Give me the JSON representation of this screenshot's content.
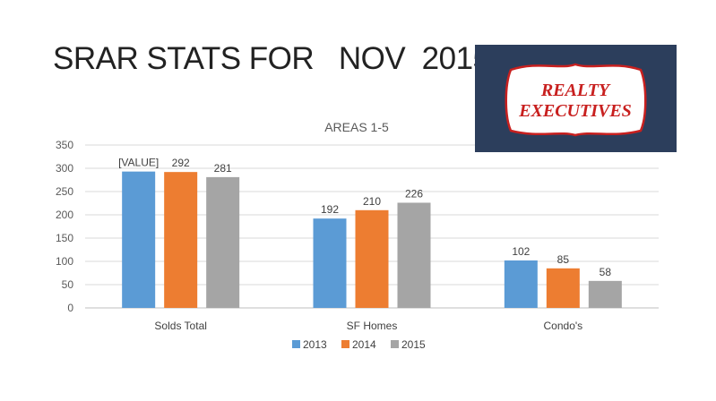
{
  "slide": {
    "title": "SRAR STATS FOR   NOV  2015"
  },
  "logo": {
    "line1": "REALTY",
    "line2": "EXECUTIVES",
    "background_color": "#2c3e5c",
    "text_color": "#c8201f"
  },
  "chart_data": {
    "type": "bar",
    "title": "AREAS 1-5",
    "xlabel": "",
    "ylabel": "",
    "categories": [
      "Solds Total",
      "SF Homes",
      "Condo's"
    ],
    "ylim": [
      0,
      350
    ],
    "yticks": [
      0,
      50,
      100,
      150,
      200,
      250,
      300,
      350
    ],
    "grid": true,
    "legend_position": "bottom",
    "series": [
      {
        "name": "2013",
        "color": "#5b9bd5",
        "values": [
          293,
          192,
          102
        ],
        "labels": [
          "[VALUE]",
          "192",
          "102"
        ]
      },
      {
        "name": "2014",
        "color": "#ed7d31",
        "values": [
          292,
          210,
          85
        ],
        "labels": [
          "292",
          "210",
          "85"
        ]
      },
      {
        "name": "2015",
        "color": "#a5a5a5",
        "values": [
          281,
          226,
          58
        ],
        "labels": [
          "281",
          "226",
          "58"
        ]
      }
    ]
  }
}
